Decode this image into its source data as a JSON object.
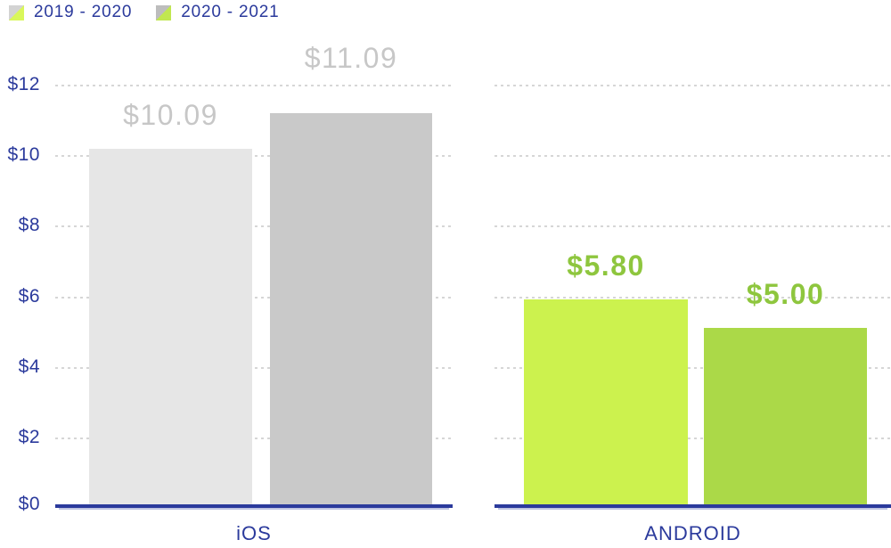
{
  "colors": {
    "axis_text": "#2b3a9c",
    "baseline": "#2b3a9c",
    "gridline": "#d6d6d6",
    "gray_label": "#c7c7c7",
    "green_label": "#8ec63e"
  },
  "legend": {
    "items": [
      {
        "label": "2019 - 2020",
        "marker_icon": "diagonal-split-square",
        "marker_gray": "#d3d3d3",
        "marker_green": "#d9f75a"
      },
      {
        "label": "2020 - 2021",
        "marker_icon": "diagonal-split-square",
        "marker_gray": "#bdbdbd",
        "marker_green": "#c1e750"
      }
    ]
  },
  "chart_data": {
    "type": "bar",
    "title": "",
    "categories": [
      "iOS",
      "ANDROID"
    ],
    "series": [
      {
        "name": "2019 - 2020",
        "values": [
          10.09,
          5.8
        ]
      },
      {
        "name": "2020 - 2021",
        "values": [
          11.09,
          5.0
        ]
      }
    ],
    "y_ticks": [
      "$0",
      "$2",
      "$4",
      "$6",
      "$8",
      "$10",
      "$12"
    ],
    "ylim": [
      0,
      12
    ],
    "grid": "horizontal-dotted",
    "legend_position": "top-left",
    "bars": [
      {
        "group": "iOS",
        "series": "2019 - 2020",
        "value": 10.09,
        "label": "$10.09",
        "color": "#e6e6e6",
        "label_color": "#c7c7c7"
      },
      {
        "group": "iOS",
        "series": "2020 - 2021",
        "value": 11.09,
        "label": "$11.09",
        "color": "#c9c9c9",
        "label_color": "#c7c7c7"
      },
      {
        "group": "ANDROID",
        "series": "2019 - 2020",
        "value": 5.8,
        "label": "$5.80",
        "color": "#ccf24e",
        "label_color": "#8ec63e"
      },
      {
        "group": "ANDROID",
        "series": "2020 - 2021",
        "value": 5.0,
        "label": "$5.00",
        "color": "#abd948",
        "label_color": "#8ec63e"
      }
    ]
  }
}
